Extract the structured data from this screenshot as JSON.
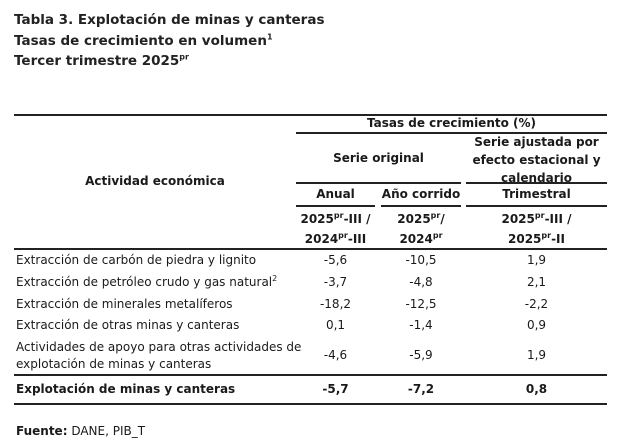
{
  "title": {
    "line1": "Tabla 3. Explotación de minas y canteras",
    "line2": "Tasas de crecimiento en volumen",
    "line2_sup": "1",
    "line3": "Tercer trimestre 2025",
    "line3_sup": "pr"
  },
  "header": {
    "activity": "Actividad económica",
    "growth": "Tasas de crecimiento (%)",
    "original": "Serie original",
    "adjusted": [
      "Serie ajustada por",
      "efecto estacional y",
      "calendario"
    ],
    "annual": "Anual",
    "ytd": "Año corrido",
    "quarterly": "Trimestral",
    "sup": "pr",
    "annual_period": {
      "a": "2025",
      "b": "-III /",
      "c": "2024",
      "d": "-III"
    },
    "ytd_period": {
      "a": "2025",
      "b": "/",
      "c": "2024",
      "d": ""
    },
    "quarterly_period": {
      "a": "2025",
      "b": "-III /",
      "c": "2025",
      "d": "-II"
    }
  },
  "rows": [
    {
      "label": "Extracción de carbón de piedra y lignito",
      "annual": "-5,6",
      "ytd": "-10,5",
      "quarterly": "1,9"
    },
    {
      "label": "Extracción de petróleo crudo y gas natural",
      "sup": "2",
      "annual": "-3,7",
      "ytd": "-4,8",
      "quarterly": "2,1"
    },
    {
      "label": "Extracción de minerales metalíferos",
      "annual": "-18,2",
      "ytd": "-12,5",
      "quarterly": "-2,2"
    },
    {
      "label": "Extracción de otras minas y canteras",
      "annual": "0,1",
      "ytd": "-1,4",
      "quarterly": "0,9"
    },
    {
      "label": "Actividades de apoyo para otras actividades de",
      "label2": "explotación de minas y canteras",
      "annual": "-4,6",
      "ytd": "-5,9",
      "quarterly": "1,9"
    }
  ],
  "total": {
    "label": "Explotación de minas y canteras",
    "annual": "-5,7",
    "ytd": "-7,2",
    "quarterly": "0,8"
  },
  "source": {
    "label": "Fuente:",
    "value": " DANE, PIB_T"
  }
}
